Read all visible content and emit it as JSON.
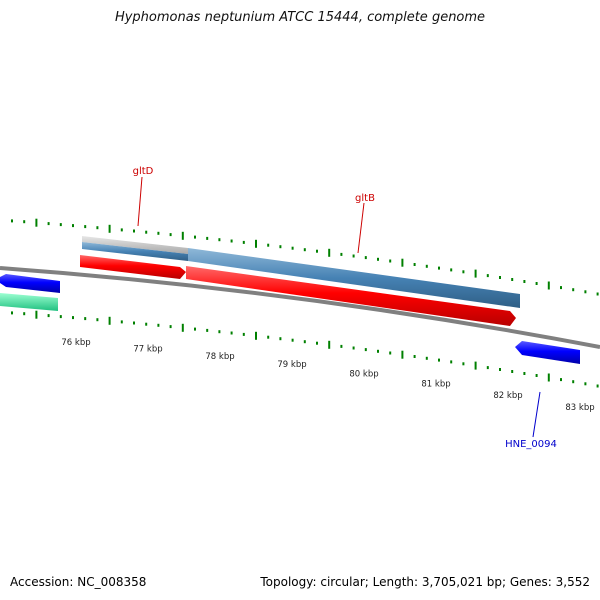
{
  "title": "Hyphomonas neptunium ATCC 15444, complete genome",
  "footer": {
    "accession": "Accession: NC_008358",
    "summary": "Topology: circular; Length: 3,705,021 bp; Genes: 3,552"
  },
  "ruler": {
    "labels": [
      "76 kbp",
      "77 kbp",
      "78 kbp",
      "79 kbp",
      "80 kbp",
      "81 kbp",
      "82 kbp",
      "83 kbp"
    ]
  },
  "genes": {
    "gltD": "gltD",
    "gltB": "gltB",
    "hne0094": "HNE_0094"
  },
  "colors": {
    "forward_cds": "#ff0000",
    "reverse_cds": "#0000ff",
    "gene_bar": "#4682b4",
    "gray_bar": "#bebebe",
    "teal_cds": "#3cf0a0",
    "backbone": "#808080",
    "ticks": "#008000",
    "gene_label_red": "#cc0000",
    "gene_label_blue": "#0000cc"
  }
}
